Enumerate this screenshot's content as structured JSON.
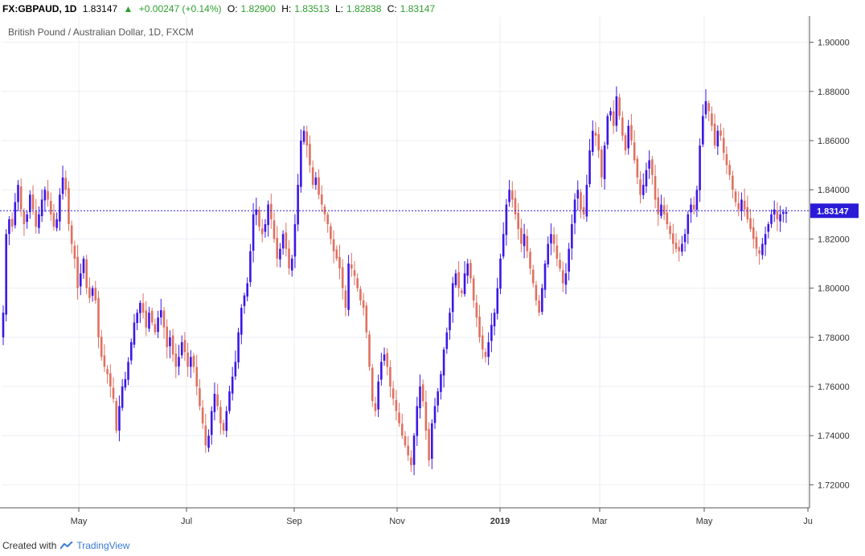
{
  "header": {
    "symbol": "FX:GBPAUD, 1D",
    "last": "1.83147",
    "change": "+0.00247 (+0.14%)",
    "o_label": "O:",
    "o_val": "1.82900",
    "h_label": "H:",
    "h_val": "1.83513",
    "l_label": "L:",
    "l_val": "1.82838",
    "c_label": "C:",
    "c_val": "1.83147"
  },
  "subtitle": "British Pound / Australian Dollar, 1D, FXCM",
  "footer": {
    "created": "Created with",
    "brand": "TradingView"
  },
  "colors": {
    "up": "#3b17e8",
    "down": "#e0705f",
    "price_tag": "#2b1bd8",
    "grid": "#eceef2"
  },
  "chart_data": {
    "type": "candlestick",
    "title": "British Pound / Australian Dollar, 1D, FXCM",
    "ylim": [
      1.71,
      1.91
    ],
    "y_ticks": [
      "1.72000",
      "1.74000",
      "1.76000",
      "1.78000",
      "1.80000",
      "1.82000",
      "1.84000",
      "1.86000",
      "1.88000",
      "1.90000"
    ],
    "x_ticks": [
      "May",
      "Jul",
      "Sep",
      "Nov",
      "2019",
      "Mar",
      "May",
      "Ju"
    ],
    "current_price": 1.83147,
    "current_price_label": "1.83147",
    "close": [
      1.79,
      1.822,
      1.828,
      1.825,
      1.835,
      1.842,
      1.832,
      1.826,
      1.83,
      1.838,
      1.832,
      1.825,
      1.83,
      1.836,
      1.84,
      1.836,
      1.83,
      1.825,
      1.828,
      1.838,
      1.845,
      1.84,
      1.826,
      1.818,
      1.812,
      1.8,
      1.806,
      1.812,
      1.8,
      1.796,
      1.8,
      1.795,
      1.78,
      1.772,
      1.768,
      1.765,
      1.76,
      1.755,
      1.742,
      1.752,
      1.76,
      1.763,
      1.77,
      1.778,
      1.786,
      1.79,
      1.794,
      1.79,
      1.784,
      1.79,
      1.786,
      1.782,
      1.788,
      1.791,
      1.784,
      1.776,
      1.78,
      1.773,
      1.768,
      1.772,
      1.778,
      1.774,
      1.768,
      1.772,
      1.768,
      1.76,
      1.752,
      1.745,
      1.736,
      1.74,
      1.75,
      1.757,
      1.752,
      1.745,
      1.742,
      1.75,
      1.758,
      1.764,
      1.77,
      1.782,
      1.792,
      1.797,
      1.802,
      1.815,
      1.83,
      1.832,
      1.825,
      1.822,
      1.826,
      1.834,
      1.828,
      1.82,
      1.812,
      1.816,
      1.822,
      1.816,
      1.808,
      1.812,
      1.826,
      1.842,
      1.86,
      1.864,
      1.858,
      1.85,
      1.842,
      1.845,
      1.838,
      1.834,
      1.83,
      1.826,
      1.82,
      1.815,
      1.812,
      1.808,
      1.8,
      1.792,
      1.81,
      1.808,
      1.805,
      1.8,
      1.795,
      1.792,
      1.782,
      1.768,
      1.754,
      1.75,
      1.762,
      1.77,
      1.773,
      1.768,
      1.76,
      1.755,
      1.75,
      1.745,
      1.74,
      1.736,
      1.732,
      1.728,
      1.74,
      1.752,
      1.76,
      1.754,
      1.742,
      1.73,
      1.745,
      1.752,
      1.758,
      1.765,
      1.775,
      1.782,
      1.79,
      1.802,
      1.806,
      1.8,
      1.798,
      1.806,
      1.81,
      1.804,
      1.795,
      1.788,
      1.78,
      1.775,
      1.772,
      1.778,
      1.785,
      1.79,
      1.8,
      1.812,
      1.822,
      1.834,
      1.84,
      1.836,
      1.83,
      1.824,
      1.818,
      1.822,
      1.815,
      1.808,
      1.802,
      1.795,
      1.79,
      1.8,
      1.81,
      1.818,
      1.822,
      1.818,
      1.812,
      1.808,
      1.802,
      1.806,
      1.816,
      1.826,
      1.836,
      1.84,
      1.832,
      1.83,
      1.842,
      1.856,
      1.864,
      1.862,
      1.856,
      1.845,
      1.858,
      1.87,
      1.872,
      1.866,
      1.878,
      1.87,
      1.862,
      1.856,
      1.866,
      1.86,
      1.852,
      1.845,
      1.838,
      1.842,
      1.848,
      1.852,
      1.846,
      1.836,
      1.83,
      1.834,
      1.83,
      1.826,
      1.822,
      1.818,
      1.816,
      1.815,
      1.818,
      1.822,
      1.83,
      1.834,
      1.832,
      1.84,
      1.858,
      1.87,
      1.876,
      1.872,
      1.866,
      1.858,
      1.864,
      1.862,
      1.855,
      1.85,
      1.846,
      1.84,
      1.835,
      1.832,
      1.836,
      1.832,
      1.828,
      1.824,
      1.82,
      1.816,
      1.814,
      1.818,
      1.822,
      1.826,
      1.83,
      1.832,
      1.828,
      1.83,
      1.831,
      1.831
    ]
  }
}
